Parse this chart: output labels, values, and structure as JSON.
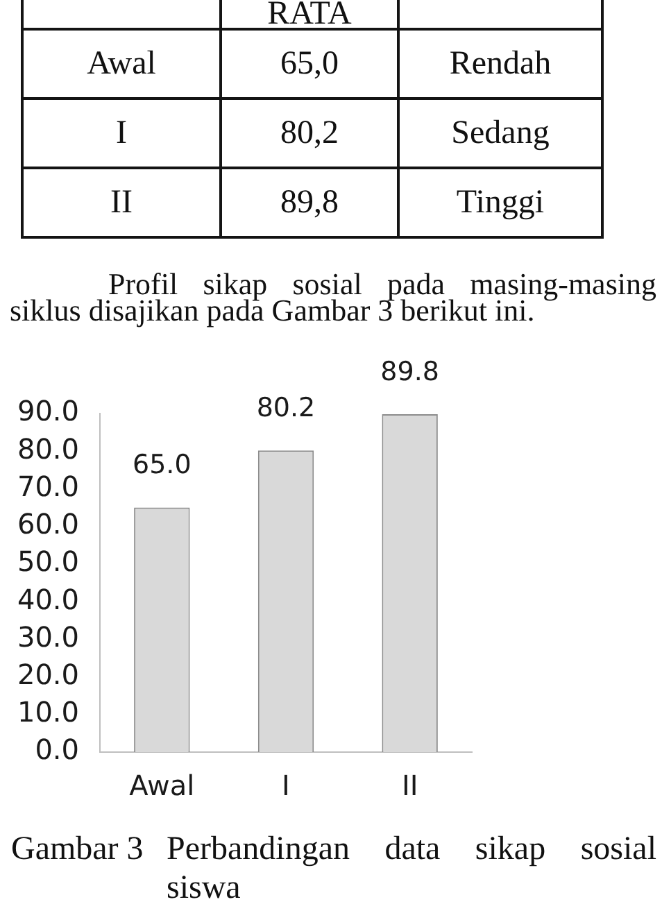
{
  "chart_data": [
    {
      "type": "other",
      "annotations": [
        "RATA",
        "Awal",
        "65,0",
        "Rendah",
        "I",
        "80,2",
        "Sedang",
        "II",
        "89,8",
        "Tinggi"
      ]
    },
    {
      "type": "bar",
      "categories": [
        "Awal",
        "I",
        "II"
      ],
      "values": [
        65.0,
        80.2,
        89.8
      ],
      "color": "#d9d9d9",
      "value_labels": [
        "65.0",
        "80.2",
        "89.8"
      ],
      "ylim": [
        0,
        90
      ],
      "yticks": [
        {
          "value": 0,
          "label": "0.0"
        },
        {
          "value": 10,
          "label": "10.0"
        },
        {
          "value": 20,
          "label": "20.0"
        },
        {
          "value": 30,
          "label": "30.0"
        },
        {
          "value": 40,
          "label": "40.0"
        },
        {
          "value": 50,
          "label": "50.0"
        },
        {
          "value": 60,
          "label": "60.0"
        },
        {
          "value": 70,
          "label": "70.0"
        },
        {
          "value": 80,
          "label": "80.0"
        },
        {
          "value": 90,
          "label": "90.0"
        }
      ],
      "annotations": [
        "Profil sikap sosial pada masing-masing siklus disajikan pada Gambar 3 berikut ini.",
        "Gambar 3",
        "Perbandingan data sikap sosial siswa"
      ]
    }
  ]
}
